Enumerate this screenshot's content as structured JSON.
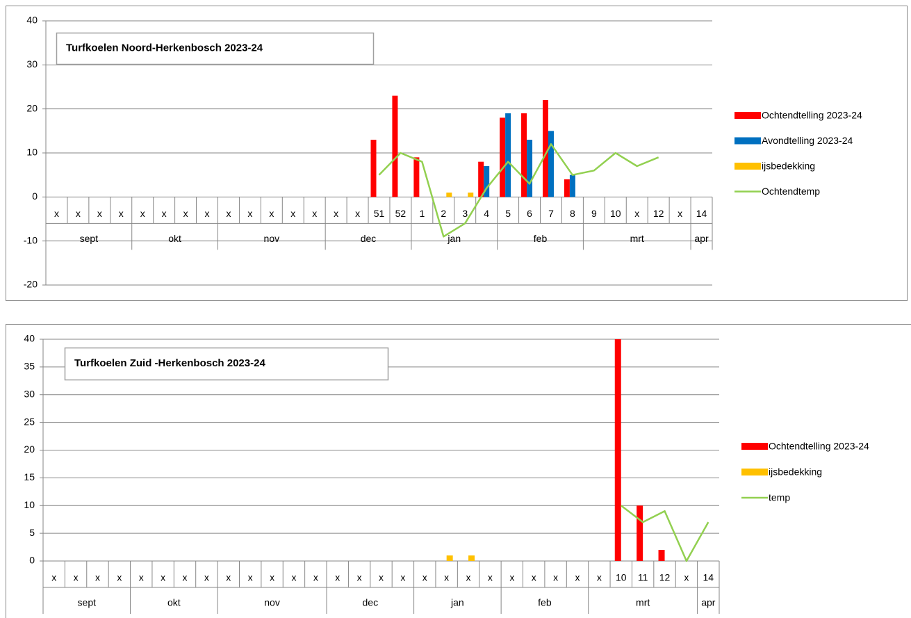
{
  "chart_data": [
    {
      "type": "bar",
      "title": "Turfkoelen Noord-Herkenbosch 2023-24",
      "categories": [
        "x",
        "x",
        "x",
        "x",
        "x",
        "x",
        "x",
        "x",
        "x",
        "x",
        "x",
        "x",
        "x",
        "x",
        "x",
        "51",
        "52",
        "1",
        "2",
        "3",
        "4",
        "5",
        "6",
        "7",
        "8",
        "9",
        "10",
        "x",
        "12",
        "x",
        "14"
      ],
      "months": [
        "sept",
        null,
        null,
        null,
        "okt",
        null,
        null,
        null,
        "nov",
        null,
        null,
        null,
        null,
        "dec",
        null,
        null,
        null,
        "jan",
        null,
        null,
        null,
        "feb",
        null,
        null,
        null,
        "mrt",
        null,
        null,
        null,
        null,
        "apr"
      ],
      "series": [
        {
          "name": "Ochtendtelling 2023-24",
          "color": "#ff0000",
          "values": [
            null,
            null,
            null,
            null,
            null,
            null,
            null,
            null,
            null,
            null,
            null,
            null,
            null,
            null,
            null,
            13,
            23,
            9,
            null,
            null,
            8,
            18,
            19,
            22,
            4,
            null,
            null,
            null,
            null,
            null,
            null
          ]
        },
        {
          "name": "Avondtelling 2023-24",
          "color": "#0070c0",
          "values": [
            null,
            null,
            null,
            null,
            null,
            null,
            null,
            null,
            null,
            null,
            null,
            null,
            null,
            null,
            null,
            null,
            null,
            null,
            null,
            null,
            7,
            19,
            13,
            15,
            5,
            null,
            null,
            null,
            null,
            null,
            null
          ]
        },
        {
          "name": "ijsbedekking",
          "color": "#ffc000",
          "values": [
            null,
            null,
            null,
            null,
            null,
            null,
            null,
            null,
            null,
            null,
            null,
            null,
            null,
            null,
            null,
            null,
            null,
            null,
            1,
            1,
            null,
            null,
            null,
            null,
            null,
            null,
            null,
            null,
            null,
            null,
            null
          ]
        },
        {
          "name": "Ochtendtemp",
          "color": "#92d050",
          "type": "line",
          "values": [
            null,
            null,
            null,
            null,
            null,
            null,
            null,
            null,
            null,
            null,
            null,
            null,
            null,
            null,
            null,
            5,
            10,
            8,
            -9,
            -6,
            2,
            8,
            3,
            12,
            5,
            6,
            10,
            7,
            9,
            null,
            null
          ]
        }
      ],
      "ylim": [
        -20,
        40
      ],
      "yticks": [
        -20,
        -10,
        0,
        10,
        20,
        30,
        40
      ],
      "grid": true
    },
    {
      "type": "bar",
      "title": "Turfkoelen Zuid -Herkenbosch 2023-24",
      "categories": [
        "x",
        "x",
        "x",
        "x",
        "x",
        "x",
        "x",
        "x",
        "x",
        "x",
        "x",
        "x",
        "x",
        "x",
        "x",
        "x",
        "x",
        "x",
        "x",
        "x",
        "x",
        "x",
        "x",
        "x",
        "x",
        "x",
        "10",
        "11",
        "12",
        "x",
        "14"
      ],
      "months": [
        "sept",
        null,
        null,
        null,
        "okt",
        null,
        null,
        null,
        "nov",
        null,
        null,
        null,
        null,
        "dec",
        null,
        null,
        null,
        "jan",
        null,
        null,
        null,
        "feb",
        null,
        null,
        null,
        "mrt",
        null,
        null,
        null,
        null,
        "apr"
      ],
      "series": [
        {
          "name": "Ochtendtelling 2023-24",
          "color": "#ff0000",
          "values": [
            null,
            null,
            null,
            null,
            null,
            null,
            null,
            null,
            null,
            null,
            null,
            null,
            null,
            null,
            null,
            null,
            null,
            null,
            null,
            null,
            null,
            null,
            null,
            null,
            null,
            null,
            40,
            10,
            2,
            null,
            null
          ]
        },
        {
          "name": "ijsbedekking",
          "color": "#ffc000",
          "values": [
            null,
            null,
            null,
            null,
            null,
            null,
            null,
            null,
            null,
            null,
            null,
            null,
            null,
            null,
            null,
            null,
            null,
            null,
            1,
            1,
            null,
            null,
            null,
            null,
            null,
            null,
            null,
            null,
            null,
            null,
            null
          ]
        },
        {
          "name": "temp",
          "color": "#92d050",
          "type": "line",
          "values": [
            null,
            null,
            null,
            null,
            null,
            null,
            null,
            null,
            null,
            null,
            null,
            null,
            null,
            null,
            null,
            null,
            null,
            null,
            null,
            null,
            null,
            null,
            null,
            null,
            null,
            null,
            10,
            7,
            9,
            0,
            7
          ]
        }
      ],
      "ylim": [
        0,
        40
      ],
      "yticks": [
        0,
        5,
        10,
        15,
        20,
        25,
        30,
        35,
        40
      ],
      "grid": true
    }
  ]
}
